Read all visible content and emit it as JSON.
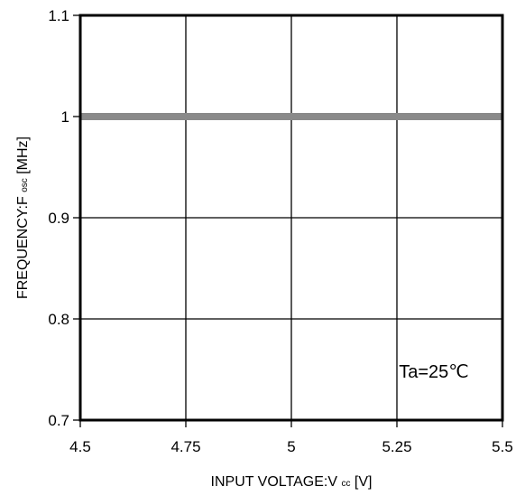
{
  "chart_data": {
    "type": "line",
    "x": [
      4.5,
      4.75,
      5,
      5.25,
      5.5
    ],
    "series": [
      {
        "values": [
          1,
          1,
          1,
          1,
          1
        ],
        "color": "#8a8a8a"
      }
    ],
    "xlim": [
      4.5,
      5.5
    ],
    "ylim": [
      0.7,
      1.1
    ],
    "x_ticks": [
      4.5,
      4.75,
      5,
      5.25,
      5.5
    ],
    "y_ticks": [
      0.7,
      0.8,
      0.9,
      1,
      1.1
    ],
    "x_tick_labels": [
      "4.5",
      "4.75",
      "5",
      "5.25",
      "5.5"
    ],
    "y_tick_labels": [
      "0.7",
      "0.8",
      "0.9",
      "1",
      "1.1"
    ],
    "xlabel_main": "INPUT VOLTAGE:V",
    "xlabel_sub": "cc",
    "xlabel_unit": "[V]",
    "ylabel_main": "FREQUENCY:F",
    "ylabel_sub": "osc",
    "ylabel_unit": "[MHz]",
    "annotation": "Ta=25℃",
    "grid": true,
    "frame_color": "#000000"
  }
}
